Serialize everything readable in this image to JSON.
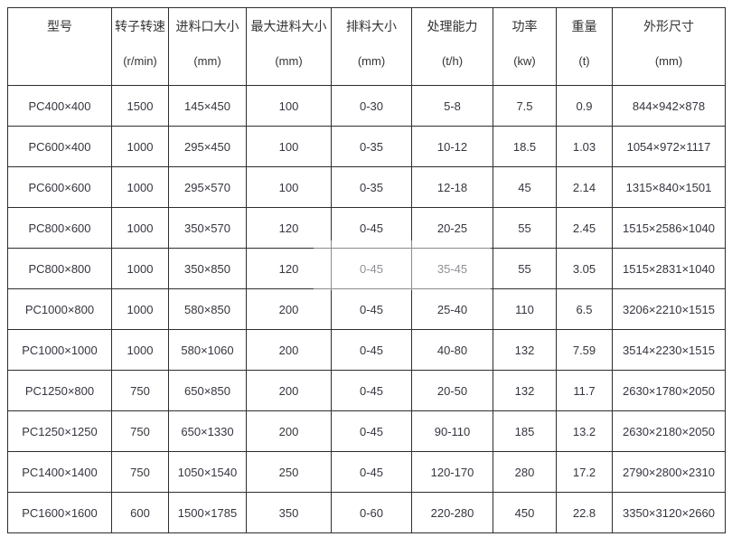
{
  "colors": {
    "background": "#ffffff",
    "border": "#2e2e2e",
    "text": "#333333"
  },
  "chart_data": {
    "type": "table",
    "columns": [
      {
        "label": "型号",
        "unit": ""
      },
      {
        "label": "转子转速",
        "unit": "(r/min)"
      },
      {
        "label": "进料口大小",
        "unit": "(mm)"
      },
      {
        "label": "最大进料大小",
        "unit": "(mm)"
      },
      {
        "label": "排料大小",
        "unit": "(mm)"
      },
      {
        "label": "处理能力",
        "unit": "(t/h)"
      },
      {
        "label": "功率",
        "unit": "(kw)"
      },
      {
        "label": "重量",
        "unit": "(t)"
      },
      {
        "label": "外形尺寸",
        "unit": "(mm)"
      }
    ],
    "rows": [
      [
        "PC400×400",
        "1500",
        "145×450",
        "100",
        "0-30",
        "5-8",
        "7.5",
        "0.9",
        "844×942×878"
      ],
      [
        "PC600×400",
        "1000",
        "295×450",
        "100",
        "0-35",
        "10-12",
        "18.5",
        "1.03",
        "1054×972×1117"
      ],
      [
        "PC600×600",
        "1000",
        "295×570",
        "100",
        "0-35",
        "12-18",
        "45",
        "2.14",
        "1315×840×1501"
      ],
      [
        "PC800×600",
        "1000",
        "350×570",
        "120",
        "0-45",
        "20-25",
        "55",
        "2.45",
        "1515×2586×1040"
      ],
      [
        "PC800×800",
        "1000",
        "350×850",
        "120",
        "0-45",
        "35-45",
        "55",
        "3.05",
        "1515×2831×1040"
      ],
      [
        "PC1000×800",
        "1000",
        "580×850",
        "200",
        "0-45",
        "25-40",
        "110",
        "6.5",
        "3206×2210×1515"
      ],
      [
        "PC1000×1000",
        "1000",
        "580×1060",
        "200",
        "0-45",
        "40-80",
        "132",
        "7.59",
        "3514×2230×1515"
      ],
      [
        "PC1250×800",
        "750",
        "650×850",
        "200",
        "0-45",
        "20-50",
        "132",
        "11.7",
        "2630×1780×2050"
      ],
      [
        "PC1250×1250",
        "750",
        "650×1330",
        "200",
        "0-45",
        "90-110",
        "185",
        "13.2",
        "2630×2180×2050"
      ],
      [
        "PC1400×1400",
        "750",
        "1050×1540",
        "250",
        "0-45",
        "120-170",
        "280",
        "17.2",
        "2790×2800×2310"
      ],
      [
        "PC1600×1600",
        "600",
        "1500×1785",
        "350",
        "0-60",
        "220-280",
        "450",
        "22.8",
        "3350×3120×2660"
      ]
    ]
  }
}
